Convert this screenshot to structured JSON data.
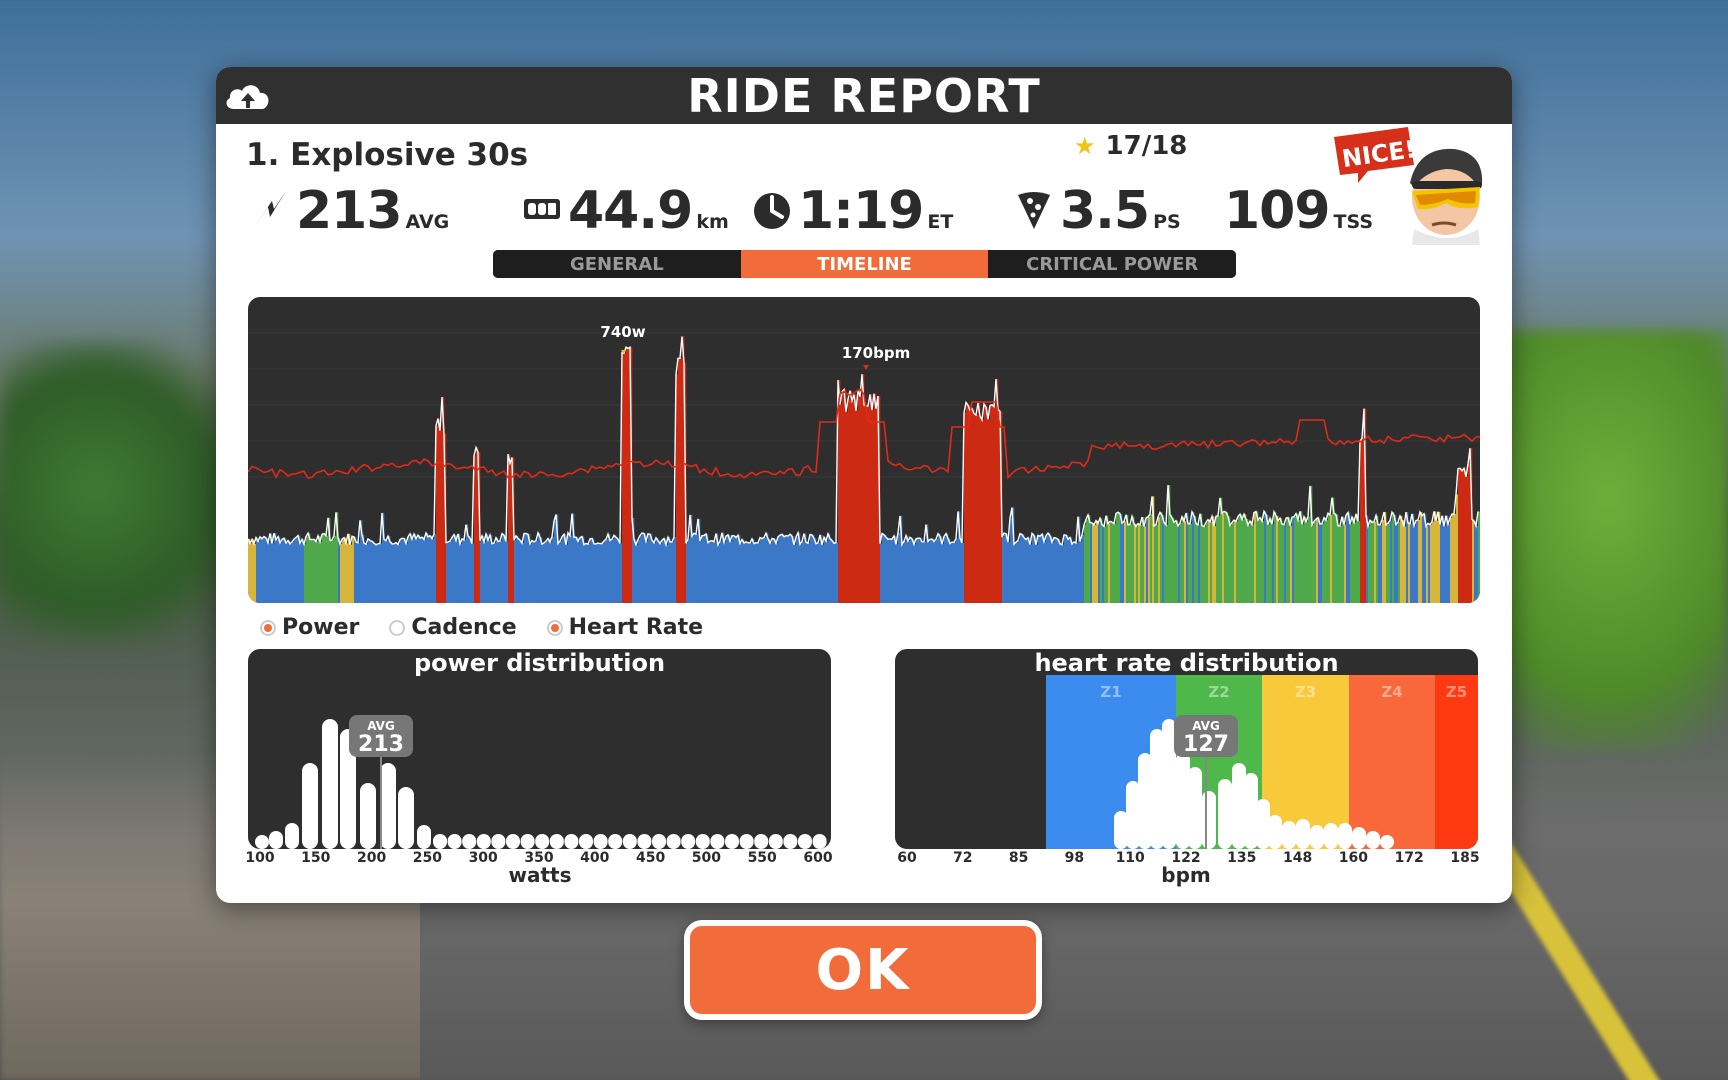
{
  "header": {
    "title": "RIDE REPORT"
  },
  "ride": {
    "name": "1. Explosive 30s",
    "stars": "17/18"
  },
  "stats": {
    "power": {
      "value": "213",
      "unit": "AVG"
    },
    "distance": {
      "value": "44.9",
      "unit": "km"
    },
    "time": {
      "value": "1:19",
      "unit": "ET"
    },
    "pizza": {
      "value": "3.5",
      "unit": "PS"
    },
    "tss": {
      "value": "109",
      "unit": "TSS"
    }
  },
  "badge": {
    "text": "NICE!"
  },
  "tabs": [
    {
      "label": "GENERAL",
      "active": false
    },
    {
      "label": "TIMELINE",
      "active": true
    },
    {
      "label": "CRITICAL POWER",
      "active": false
    }
  ],
  "timeline": {
    "peak_power_label": "740w",
    "peak_hr_label": "170bpm",
    "colors": {
      "background": "#2e2e2e",
      "z1": "#3c78c8",
      "z2": "#4fa84a",
      "z3": "#d6b53a",
      "z4": "#f26b3a",
      "z5": "#cc2a12",
      "hr_line": "#e02a1a",
      "power_line": "#ffffff"
    }
  },
  "legend": [
    {
      "label": "Power",
      "on": true
    },
    {
      "label": "Cadence",
      "on": false
    },
    {
      "label": "Heart Rate",
      "on": true
    }
  ],
  "power_distribution": {
    "title": "power distribution",
    "avg_label": "AVG",
    "avg_value": "213",
    "axis_label": "watts",
    "ticks": [
      "100",
      "150",
      "200",
      "250",
      "300",
      "350",
      "400",
      "450",
      "500",
      "550",
      "600"
    ]
  },
  "hr_distribution": {
    "title": "heart rate distribution",
    "avg_label": "AVG",
    "avg_value": "127",
    "axis_label": "bpm",
    "ticks": [
      "60",
      "72",
      "85",
      "98",
      "110",
      "122",
      "135",
      "148",
      "160",
      "172",
      "185"
    ],
    "zones": [
      {
        "label": "Z1",
        "color": "#3c8cf0"
      },
      {
        "label": "Z2",
        "color": "#4fb84a"
      },
      {
        "label": "Z3",
        "color": "#f8c93a"
      },
      {
        "label": "Z4",
        "color": "#f8683a"
      },
      {
        "label": "Z5",
        "color": "#ff3a12"
      }
    ]
  },
  "ok_button": {
    "label": "OK"
  }
}
